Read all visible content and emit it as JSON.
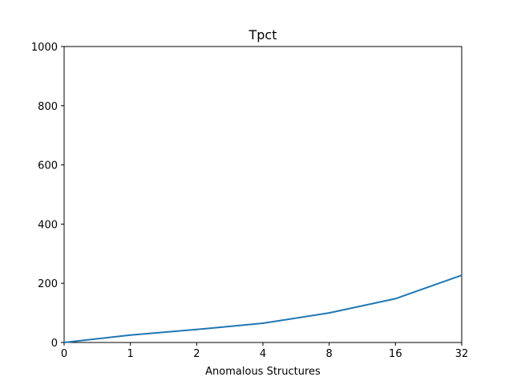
{
  "chart_data": {
    "type": "line",
    "title": "Tpct",
    "xlabel": "Anomalous Structures",
    "ylabel": "",
    "categories": [
      "0",
      "1",
      "2",
      "4",
      "8",
      "16",
      "32"
    ],
    "series": [
      {
        "values": [
          0,
          25,
          44,
          65,
          100,
          148,
          227
        ],
        "color": "#1f77b4"
      }
    ],
    "ylim": [
      0,
      1000
    ],
    "yticks": [
      0,
      200,
      400,
      600,
      800,
      1000
    ],
    "grid": false,
    "legend": "none"
  }
}
